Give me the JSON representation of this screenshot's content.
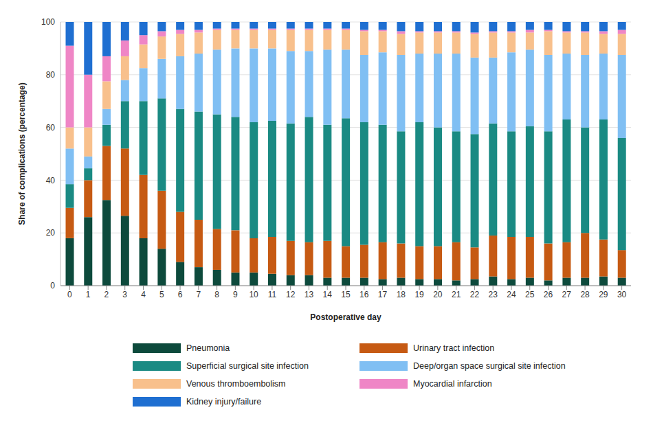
{
  "chart_data": {
    "type": "bar",
    "stacked": true,
    "x_label": "Postoperative day",
    "y_label": "Share of complications (percentage)",
    "categories": [
      "0",
      "1",
      "2",
      "3",
      "4",
      "5",
      "6",
      "7",
      "8",
      "9",
      "10",
      "11",
      "12",
      "13",
      "14",
      "15",
      "16",
      "17",
      "18",
      "19",
      "20",
      "21",
      "22",
      "23",
      "24",
      "25",
      "26",
      "27",
      "28",
      "29",
      "30"
    ],
    "ylim": [
      0,
      100
    ],
    "yticks": [
      0,
      20,
      40,
      60,
      80,
      100
    ],
    "grid": true,
    "legend": "bottom",
    "series": [
      {
        "name": "Pneumonia",
        "color": "#0d4a3c",
        "values": [
          18,
          26,
          32.5,
          26.5,
          18,
          14,
          9,
          7,
          6,
          5,
          5,
          4.5,
          4,
          4,
          3,
          3,
          3,
          2.5,
          3,
          2.5,
          2.5,
          2,
          2.5,
          3.5,
          2.5,
          3,
          2,
          3,
          3,
          3.5,
          3
        ]
      },
      {
        "name": "Urinary tract infection",
        "color": "#c65a13",
        "values": [
          11.5,
          14,
          20.5,
          25.5,
          24,
          22,
          19,
          18,
          15.5,
          16,
          13,
          14,
          13,
          12.5,
          14,
          12,
          12.5,
          14,
          13,
          12.5,
          12.5,
          14.5,
          12,
          15.5,
          16,
          15.5,
          14,
          13.5,
          17,
          14,
          10.5
        ]
      },
      {
        "name": "Superficial surgical site infection",
        "color": "#1a8a83",
        "values": [
          9,
          4.5,
          8,
          18,
          28,
          35,
          39,
          41,
          43.5,
          43,
          44,
          44,
          44.5,
          47.5,
          44,
          48.5,
          46.5,
          44.5,
          42.5,
          47,
          45,
          42,
          43,
          42.5,
          40,
          42,
          42.5,
          46.5,
          40,
          45.5,
          42.5
        ]
      },
      {
        "name": "Deep/organ space surgical site infection",
        "color": "#80bff3",
        "values": [
          13.5,
          4.5,
          6,
          8,
          12.5,
          15,
          20,
          22,
          24.5,
          26,
          28,
          27.5,
          27.5,
          25,
          28.5,
          26,
          25.5,
          27.5,
          29,
          26,
          28,
          29.5,
          29,
          25,
          30,
          29,
          29,
          25,
          27.5,
          25,
          31.5
        ]
      },
      {
        "name": "Venous thromboembolism",
        "color": "#f8c08c",
        "values": [
          8,
          11,
          10.5,
          9,
          9,
          8.5,
          8.5,
          8,
          7.5,
          7,
          7,
          7,
          8,
          8,
          7.5,
          7.5,
          9,
          8,
          8,
          8,
          8,
          8,
          9,
          9.5,
          7.5,
          6.5,
          9,
          8,
          8.5,
          7.5,
          8
        ]
      },
      {
        "name": "Myocardial infarction",
        "color": "#ef86c6",
        "values": [
          31,
          20,
          9.5,
          6,
          3.5,
          2,
          1.5,
          1,
          0.5,
          0.5,
          0.5,
          0.5,
          0.5,
          0.5,
          0.5,
          0.5,
          0.5,
          0.5,
          1,
          0.5,
          0.5,
          0.5,
          0.5,
          0.5,
          0.5,
          1,
          0.5,
          0.5,
          0.5,
          1,
          1.5
        ]
      },
      {
        "name": "Kidney injury/failure",
        "color": "#1f6fd1",
        "values": [
          9,
          20,
          13,
          7,
          5,
          3.5,
          3,
          3,
          2.5,
          2.5,
          2.5,
          2.5,
          2.5,
          2.5,
          2.5,
          2.5,
          3,
          3,
          3.5,
          3.5,
          3.5,
          3.5,
          4,
          3.5,
          3.5,
          3,
          3,
          3.5,
          3.5,
          3.5,
          3
        ]
      }
    ]
  }
}
